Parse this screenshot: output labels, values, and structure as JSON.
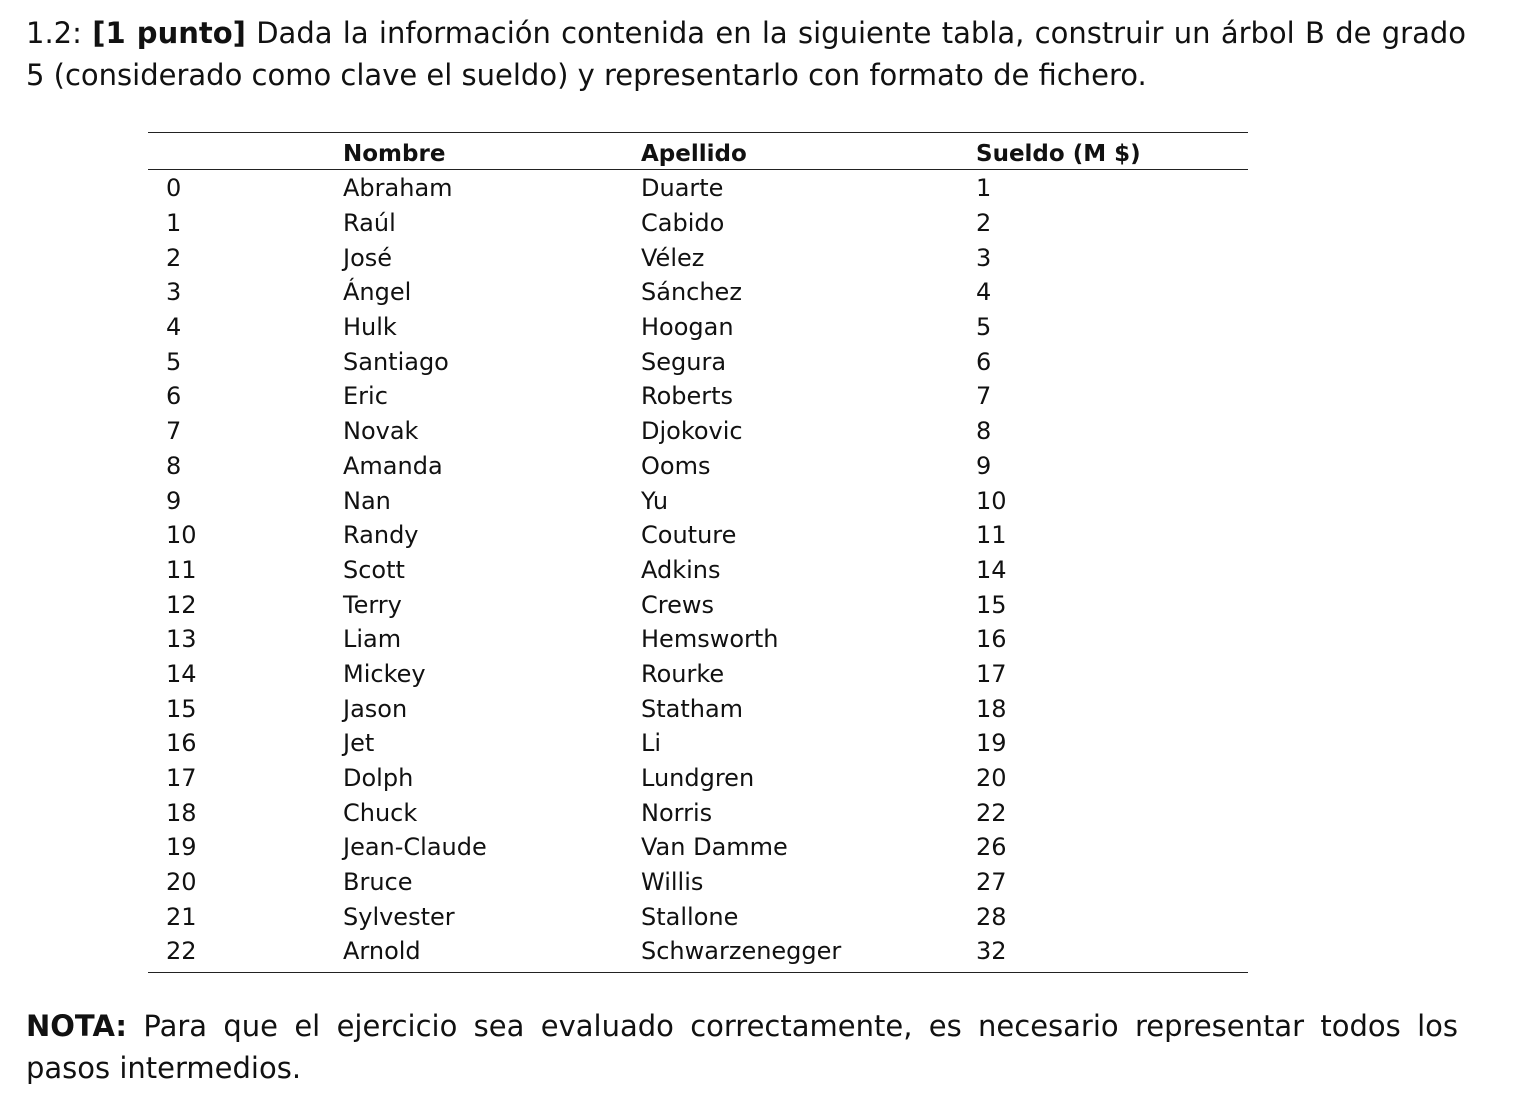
{
  "question": {
    "number": "1.2:",
    "points": "[1 punto]",
    "text": "Dada la información contenida en la siguiente tabla, construir un árbol B de grado 5 (considerado como clave el sueldo) y representarlo con formato de fichero."
  },
  "table": {
    "headers": [
      "",
      "Nombre",
      "Apellido",
      "Sueldo (M $)"
    ],
    "rows": [
      [
        "0",
        "Abraham",
        "Duarte",
        "1"
      ],
      [
        "1",
        "Raúl",
        "Cabido",
        "2"
      ],
      [
        "2",
        "José",
        "Vélez",
        "3"
      ],
      [
        "3",
        "Ángel",
        "Sánchez",
        "4"
      ],
      [
        "4",
        "Hulk",
        "Hoogan",
        "5"
      ],
      [
        "5",
        "Santiago",
        "Segura",
        "6"
      ],
      [
        "6",
        "Eric",
        "Roberts",
        "7"
      ],
      [
        "7",
        "Novak",
        "Djokovic",
        "8"
      ],
      [
        "8",
        "Amanda",
        "Ooms",
        "9"
      ],
      [
        "9",
        "Nan",
        "Yu",
        "10"
      ],
      [
        "10",
        "Randy",
        "Couture",
        "11"
      ],
      [
        "11",
        "Scott",
        "Adkins",
        "14"
      ],
      [
        "12",
        "Terry",
        "Crews",
        "15"
      ],
      [
        "13",
        "Liam",
        "Hemsworth",
        "16"
      ],
      [
        "14",
        "Mickey",
        "Rourke",
        "17"
      ],
      [
        "15",
        "Jason",
        "Statham",
        "18"
      ],
      [
        "16",
        "Jet",
        "Li",
        "19"
      ],
      [
        "17",
        "Dolph",
        "Lundgren",
        "20"
      ],
      [
        "18",
        "Chuck",
        "Norris",
        "22"
      ],
      [
        "19",
        "Jean-Claude",
        "Van Damme",
        "26"
      ],
      [
        "20",
        "Bruce",
        "Willis",
        "27"
      ],
      [
        "21",
        "Sylvester",
        "Stallone",
        "28"
      ],
      [
        "22",
        "Arnold",
        "Schwarzenegger",
        "32"
      ]
    ]
  },
  "nota": {
    "label": "NOTA:",
    "text": "Para que el ejercicio sea evaluado correctamente, es necesario representar todos los pasos intermedios."
  }
}
